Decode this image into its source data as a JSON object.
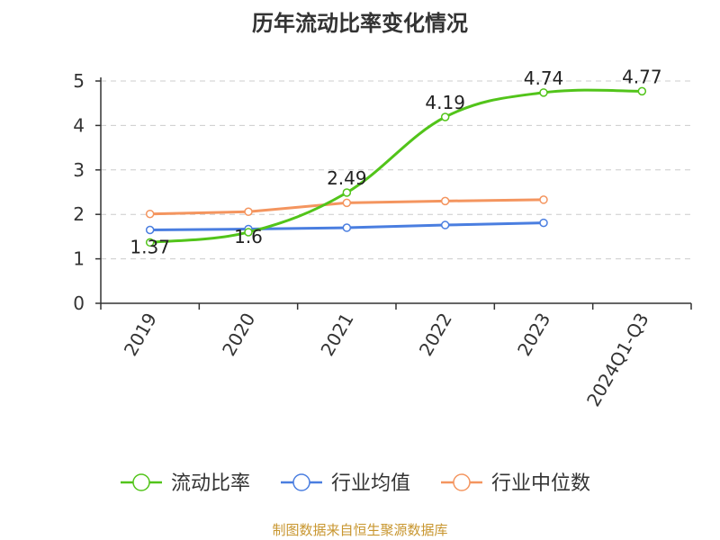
{
  "title": "历年流动比率变化情况",
  "source": "制图数据来自恒生聚源数据库",
  "colors": {
    "current_ratio": "#52c41a",
    "industry_avg": "#4a7ee0",
    "industry_median": "#f4955f",
    "grid": "#cccccc",
    "axis": "#333333"
  },
  "chart_data": {
    "type": "line",
    "title": "历年流动比率变化情况",
    "categories": [
      "2019",
      "2020",
      "2021",
      "2022",
      "2023",
      "2024Q1-Q3"
    ],
    "ylim": [
      0,
      5
    ],
    "yticks": [
      0,
      1,
      2,
      3,
      4,
      5
    ],
    "grid": true,
    "legend_position": "bottom",
    "series": [
      {
        "name": "流动比率",
        "values": [
          1.37,
          1.6,
          2.49,
          4.19,
          4.74,
          4.77
        ],
        "labels": [
          "1.37",
          "1.6",
          "2.49",
          "4.19",
          "4.74",
          "4.77"
        ]
      },
      {
        "name": "行业均值",
        "values": [
          1.65,
          1.67,
          1.7,
          1.76,
          1.81,
          null
        ]
      },
      {
        "name": "行业中位数",
        "values": [
          2.01,
          2.06,
          2.26,
          2.3,
          2.33,
          null
        ]
      }
    ]
  }
}
